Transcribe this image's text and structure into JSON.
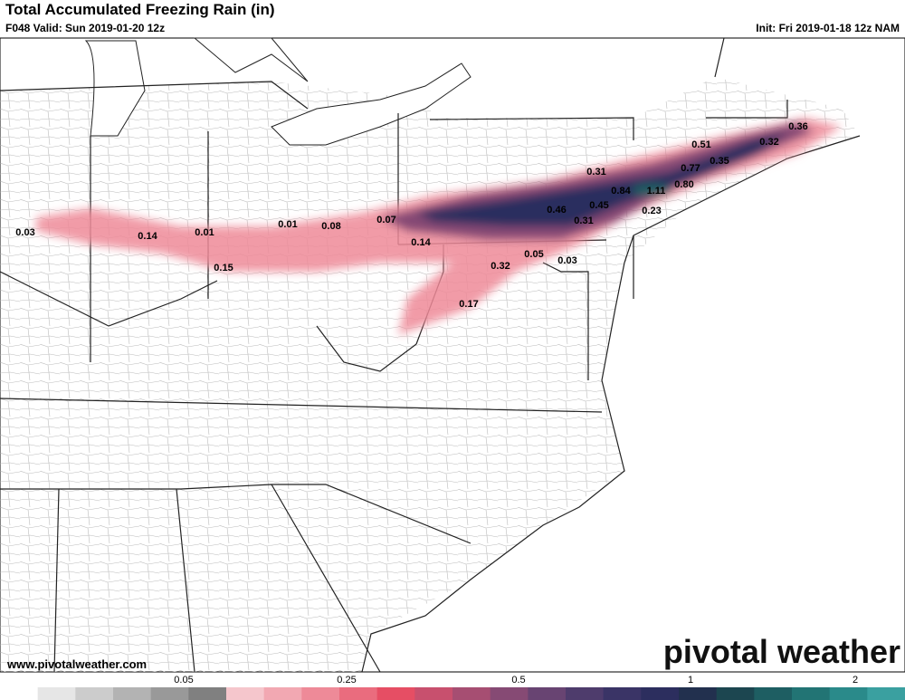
{
  "header": {
    "title": "Total Accumulated Freezing Rain (in)",
    "valid": "F048 Valid: Sun 2019-01-20 12z",
    "init": "Init: Fri 2019-01-18 12z NAM"
  },
  "map": {
    "labels": [
      "0.36",
      "0.51",
      "0.32",
      "0.77",
      "0.35",
      "0.31",
      "0.84",
      "1.11",
      "0.80",
      "0.46",
      "0.45",
      "0.23",
      "0.31",
      "0.03",
      "0.14",
      "0.01",
      "0.01",
      "0.08",
      "0.07",
      "0.14",
      "0.05",
      "0.03",
      "0.32",
      "0.15",
      "0.17"
    ]
  },
  "footer": {
    "website": "www.pivotalweather.com",
    "logo": "pivotal weather"
  },
  "colorbar": {
    "ticks": [
      "0.05",
      "0.25",
      "0.5",
      "1",
      "2"
    ],
    "colors": [
      "#ffffff",
      "#e6e6e6",
      "#cccccc",
      "#b3b3b3",
      "#999999",
      "#808080",
      "#f5c6cc",
      "#f2a8b2",
      "#ee8a98",
      "#ea6c7e",
      "#e64e64",
      "#c8506e",
      "#a64e72",
      "#864a74",
      "#684472",
      "#4e3c6c",
      "#3a3466",
      "#2c2e5e",
      "#22304e",
      "#1c4650",
      "#1e5e62",
      "#227474",
      "#2a8a8a",
      "#3aa0a0"
    ]
  }
}
